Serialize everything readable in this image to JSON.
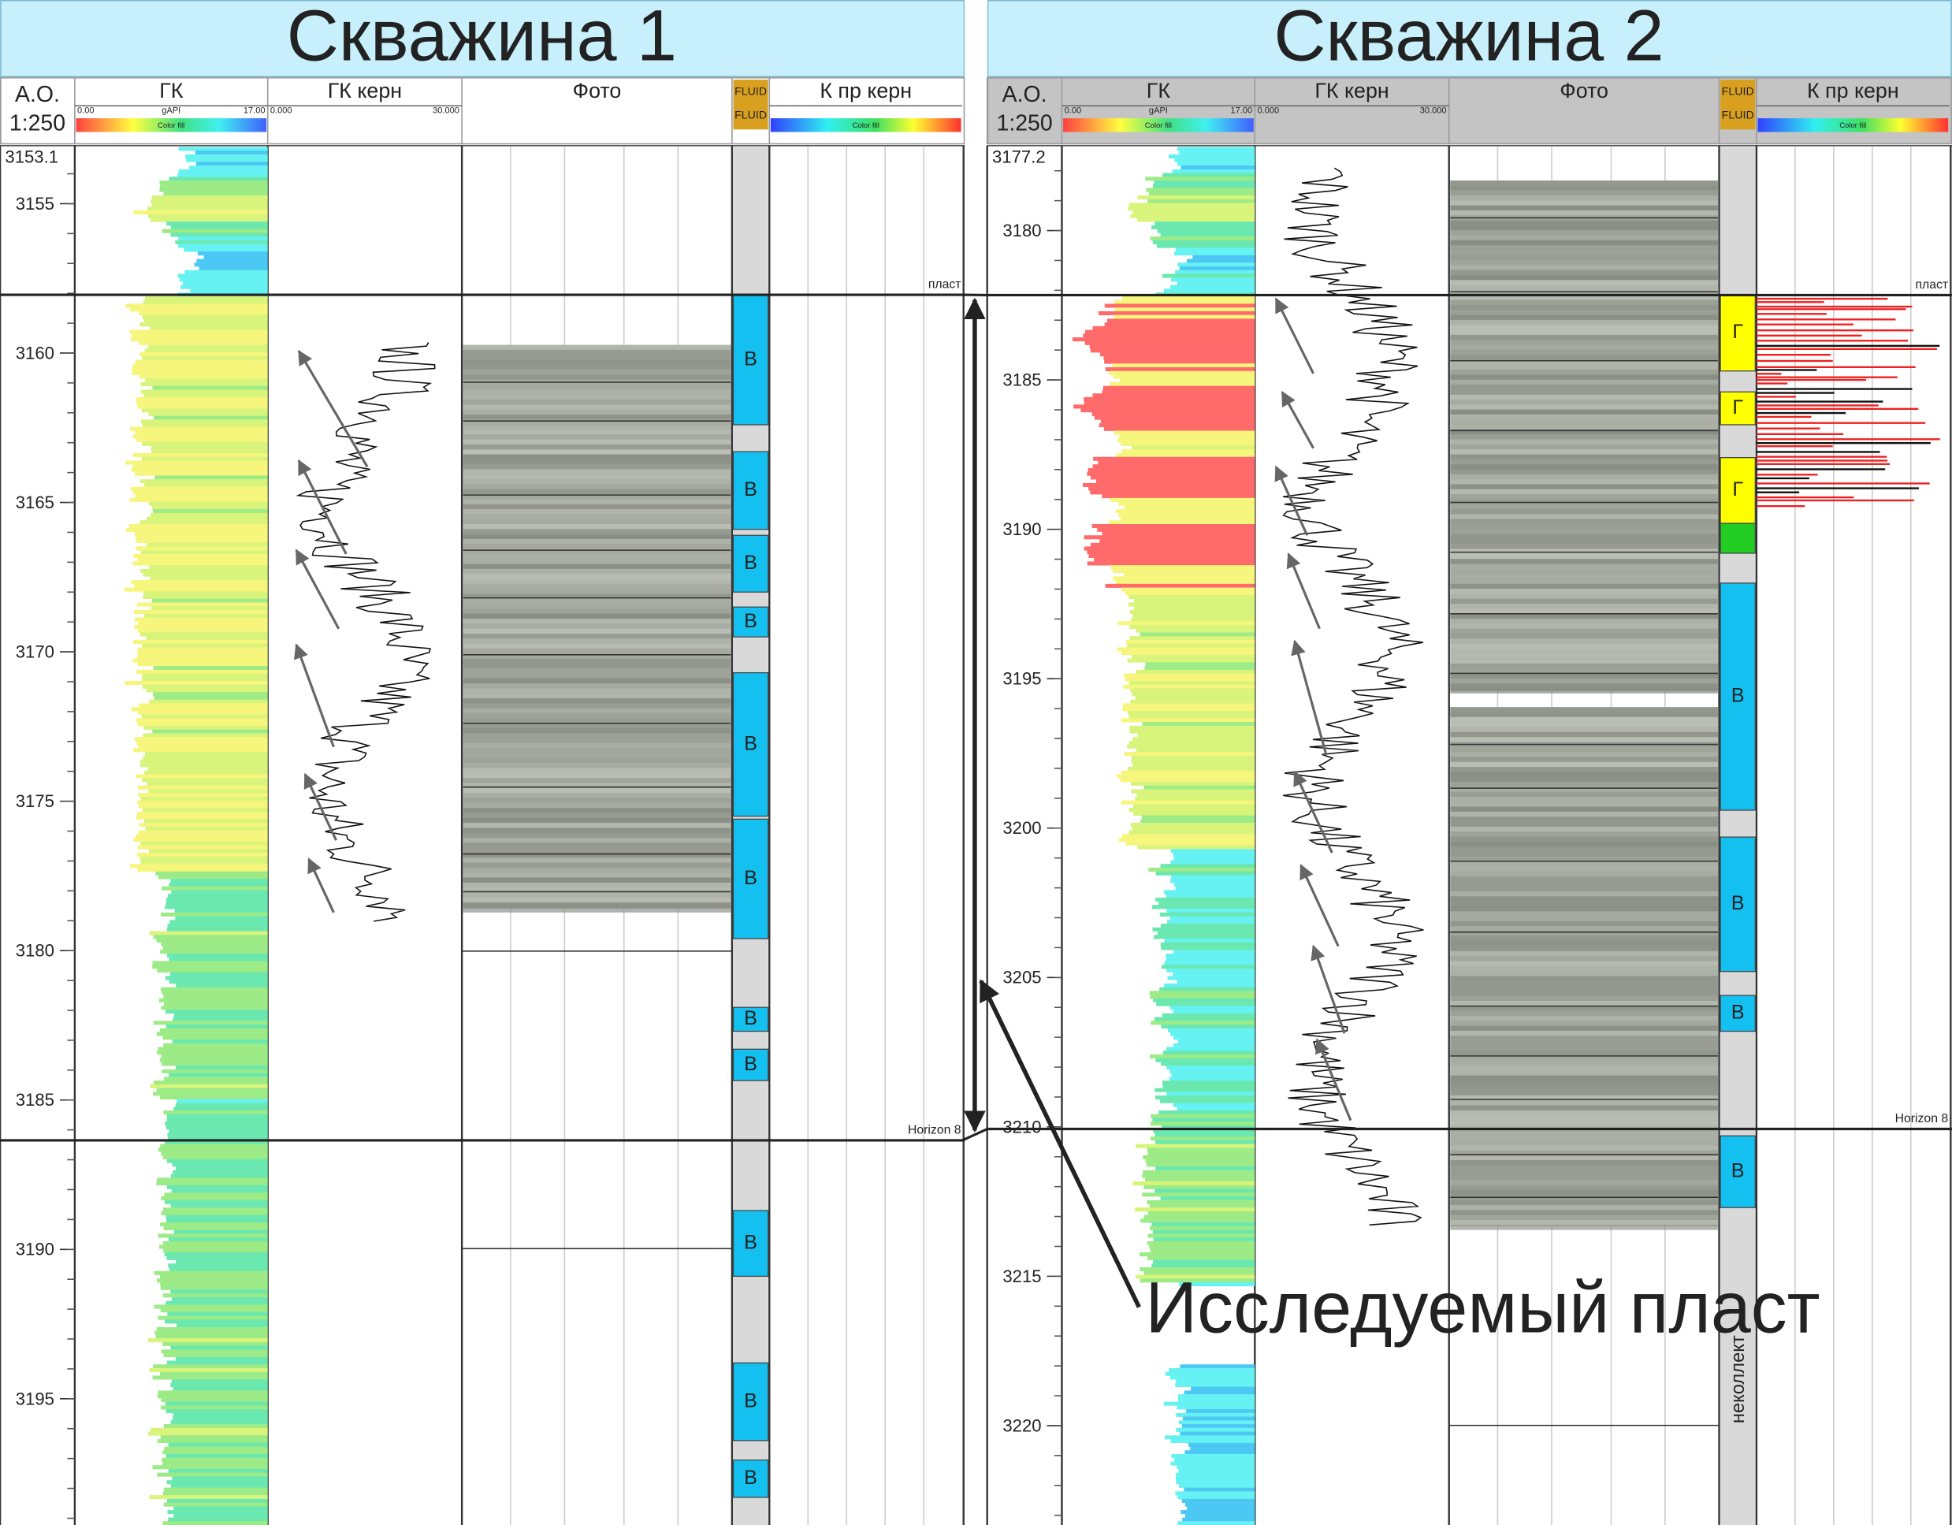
{
  "wells": [
    {
      "title": "Скважина 1",
      "header": {
        "depth_label": "А.О.",
        "scale": "1:250",
        "gk": "ГК",
        "gk_min": "0.00",
        "gk_unit": "gAPI",
        "gk_max": "17.00",
        "gk_fill": "Color fill",
        "gk_core": "ГК керн",
        "gk_core_min": "0.000",
        "gk_core_max": "30.000",
        "photo": "Фото",
        "fluid": "FLUID",
        "kpr": "К пр керн",
        "kpr_fill": "Color fill"
      },
      "top_depth": 3153.1,
      "depth_ticks": [
        3155,
        3160,
        3165,
        3170,
        3175,
        3180,
        3185,
        3190,
        3195
      ],
      "horizons": [
        {
          "name": "пласт",
          "depth": 3158.05
        },
        {
          "name": "Horizon 8",
          "depth": 3186.35
        }
      ],
      "intervals": [
        {
          "label": "В",
          "top": 3158.06,
          "bottom": 3162.4
        },
        {
          "label": "В",
          "top": 3163.3,
          "bottom": 3165.9
        },
        {
          "label": "В",
          "top": 3166.1,
          "bottom": 3168.0
        },
        {
          "label": "В",
          "top": 3168.5,
          "bottom": 3169.5
        },
        {
          "label": "В",
          "top": 3170.7,
          "bottom": 3175.5
        },
        {
          "label": "В",
          "top": 3175.6,
          "bottom": 3179.6
        },
        {
          "label": "В",
          "top": 3181.9,
          "bottom": 3182.7
        },
        {
          "label": "В",
          "top": 3183.3,
          "bottom": 3184.35
        },
        {
          "label": "В",
          "top": 3188.7,
          "bottom": 3190.9
        },
        {
          "label": "В",
          "top": 3193.8,
          "bottom": 3196.4
        },
        {
          "label": "В",
          "top": 3197.05,
          "bottom": 3198.3
        }
      ]
    },
    {
      "title": "Скважина 2",
      "header": {
        "depth_label": "А.О.",
        "scale": "1:250",
        "gk": "ГК",
        "gk_min": "0.00",
        "gk_unit": "gAPI",
        "gk_max": "17.00",
        "gk_fill": "Color fill",
        "gk_core": "ГК керн",
        "gk_core_min": "0.000",
        "gk_core_max": "30.000",
        "photo": "Фото",
        "fluid": "FLUID",
        "kpr": "К пр керн",
        "kpr_fill": "Color fill"
      },
      "top_depth": 3177.2,
      "depth_ticks": [
        3180,
        3185,
        3190,
        3195,
        3200,
        3205,
        3210,
        3215,
        3220
      ],
      "horizons": [
        {
          "name": "пласт",
          "depth": 3182.16
        },
        {
          "name": "Horizon 8",
          "depth": 3210.07
        }
      ],
      "intervals": [
        {
          "label": "Г",
          "top": 3182.16,
          "bottom": 3184.7
        },
        {
          "label": "Г",
          "top": 3185.4,
          "bottom": 3186.5
        },
        {
          "label": "Г",
          "top": 3187.6,
          "bottom": 3189.8
        },
        {
          "label": null,
          "top": 3189.8,
          "bottom": 3190.8
        },
        {
          "label": "В",
          "top": 3191.8,
          "bottom": 3199.4
        },
        {
          "label": "В",
          "top": 3200.3,
          "bottom": 3204.8
        },
        {
          "label": "В",
          "top": 3205.6,
          "bottom": 3206.8
        },
        {
          "label": "В",
          "top": 3210.3,
          "bottom": 3212.7
        }
      ],
      "note": "неколлект"
    }
  ],
  "annotation": "Исследуемый пласт"
}
